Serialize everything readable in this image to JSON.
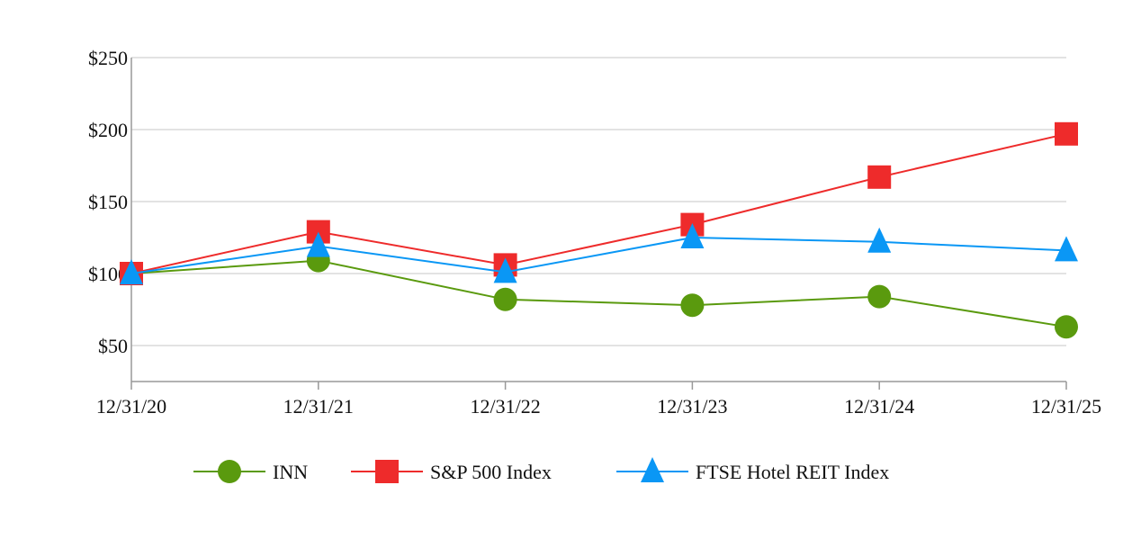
{
  "chart_data": {
    "type": "line",
    "categories": [
      "12/31/20",
      "12/31/21",
      "12/31/22",
      "12/31/23",
      "12/31/24",
      "12/31/25"
    ],
    "series": [
      {
        "name": "INN",
        "values": [
          100,
          109,
          82,
          78,
          84,
          63
        ],
        "color": "#5a9a0e",
        "marker": "circle"
      },
      {
        "name": "S&P 500 Index",
        "values": [
          100,
          129,
          106,
          134,
          167,
          197
        ],
        "color": "#ee2b2b",
        "marker": "square"
      },
      {
        "name": "FTSE Hotel REIT Index",
        "values": [
          100,
          119,
          101,
          125,
          122,
          116
        ],
        "color": "#0a97f5",
        "marker": "triangle"
      }
    ],
    "yticks": [
      50,
      100,
      150,
      200,
      250
    ],
    "ytick_labels": [
      "$50",
      "$100",
      "$150",
      "$200",
      "$250"
    ],
    "ylim": [
      25,
      250
    ],
    "grid": true,
    "legend": "bottom"
  }
}
